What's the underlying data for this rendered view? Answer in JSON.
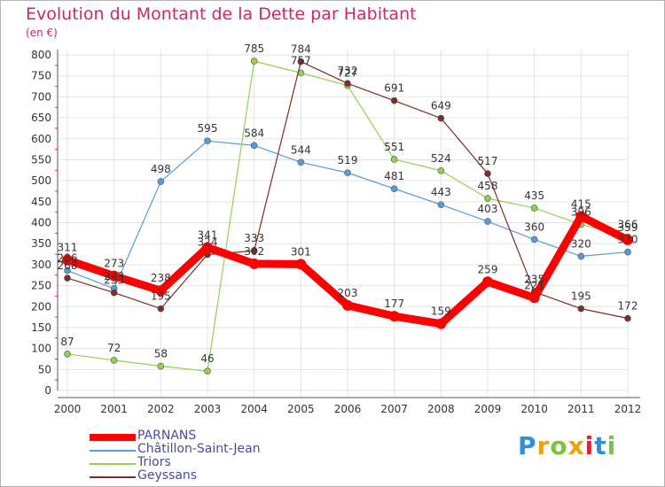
{
  "title": "Evolution du Montant de la Dette par Habitant",
  "subtitle": "(en €)",
  "logo": {
    "text": "Proxiti",
    "colors": [
      "#2f8fd8",
      "#e8a317",
      "#7cc242",
      "#e8a317",
      "#d9263a",
      "#2f8fd8",
      "#7cc242"
    ]
  },
  "chart_data": {
    "type": "line",
    "title": "Evolution du Montant de la Dette par Habitant",
    "ylabel": "(en €)",
    "xlabel": "",
    "ylim": [
      0,
      800
    ],
    "yticks": [
      0,
      50,
      100,
      150,
      200,
      250,
      300,
      350,
      400,
      450,
      500,
      550,
      600,
      650,
      700,
      750,
      800
    ],
    "categories": [
      "2000",
      "2001",
      "2002",
      "2003",
      "2004",
      "2005",
      "2006",
      "2007",
      "2008",
      "2009",
      "2010",
      "2011",
      "2012"
    ],
    "grid": true,
    "legend_position": "bottom-left",
    "series": [
      {
        "name": "PARNANS",
        "color": "#ff0000",
        "values": [
          311,
          273,
          238,
          341,
          302,
          301,
          203,
          177,
          159,
          259,
          221,
          415,
          359
        ]
      },
      {
        "name": "Châtillon-Saint-Jean",
        "color": "#5b9bd5",
        "values": [
          286,
          243,
          498,
          595,
          584,
          544,
          519,
          481,
          443,
          403,
          360,
          320,
          330
        ]
      },
      {
        "name": "Triors",
        "color": "#92d050",
        "values": [
          87,
          72,
          58,
          46,
          785,
          757,
          727,
          551,
          524,
          458,
          435,
          396,
          366
        ]
      },
      {
        "name": "Geyssans",
        "color": "#7b2c2c",
        "values": [
          268,
          233,
          195,
          324,
          333,
          784,
          732,
          691,
          649,
          517,
          235,
          195,
          172
        ]
      }
    ]
  }
}
